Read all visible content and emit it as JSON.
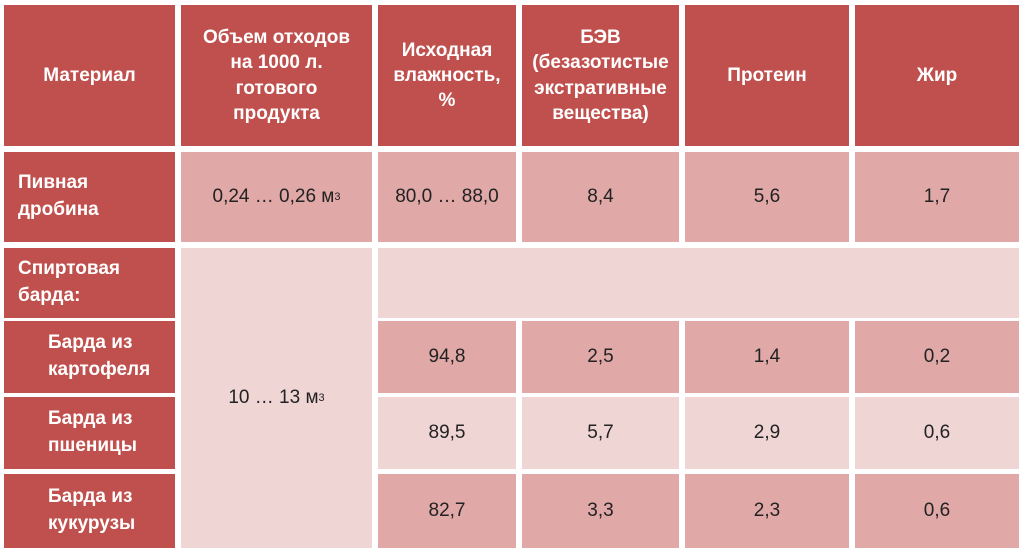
{
  "header": {
    "material": "Материал",
    "volume": "Объем отходов на 1000 л. готового продукта",
    "humidity": "Исходная влажность, %",
    "bev": "БЭВ (безазотистые экстративные вещества)",
    "protein": "Протеин",
    "fat": "Жир"
  },
  "rows": {
    "beer": {
      "label": "Пивная дробина",
      "volume": "0,24 … 0,26 м",
      "volume_sup": "3",
      "humidity": "80,0 … 88,0",
      "bev": "8,4",
      "protein": "5,6",
      "fat": "1,7"
    },
    "spirit": {
      "label": "Спиртовая барда:",
      "volume": "10 … 13 м",
      "volume_sup": "3"
    },
    "potato": {
      "label": "Барда из картофеля",
      "humidity": "94,8",
      "bev": "2,5",
      "protein": "1,4",
      "fat": "0,2"
    },
    "wheat": {
      "label": "Барда из пшеницы",
      "humidity": "89,5",
      "bev": "5,7",
      "protein": "2,9",
      "fat": "0,6"
    },
    "corn": {
      "label": "Барда из кукурузы",
      "humidity": "82,7",
      "bev": "3,3",
      "protein": "2,3",
      "fat": "0,6"
    }
  }
}
